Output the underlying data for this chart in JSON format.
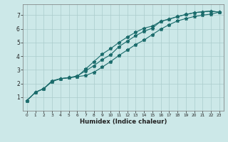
{
  "xlabel": "Humidex (Indice chaleur)",
  "background_color": "#cce8e8",
  "grid_color": "#aacccc",
  "line_color": "#1a6b6b",
  "xlim": [
    -0.5,
    23.5
  ],
  "ylim": [
    0,
    7.8
  ],
  "x_ticks": [
    0,
    1,
    2,
    3,
    4,
    5,
    6,
    7,
    8,
    9,
    10,
    11,
    12,
    13,
    14,
    15,
    16,
    17,
    18,
    19,
    20,
    21,
    22,
    23
  ],
  "y_ticks": [
    1,
    2,
    3,
    4,
    5,
    6,
    7
  ],
  "line1_x": [
    0,
    1,
    2,
    3,
    4,
    5,
    6,
    7,
    8,
    9,
    10,
    11,
    12,
    13,
    14,
    15,
    16,
    17,
    18,
    19,
    20,
    21,
    22,
    23
  ],
  "line1_y": [
    0.75,
    1.35,
    1.62,
    2.15,
    2.35,
    2.42,
    2.5,
    3.05,
    3.6,
    4.15,
    4.55,
    5.0,
    5.4,
    5.75,
    6.05,
    6.2,
    6.55,
    6.7,
    6.9,
    7.05,
    7.18,
    7.25,
    7.3,
    7.22
  ],
  "line2_x": [
    0,
    1,
    2,
    3,
    4,
    5,
    6,
    7,
    8,
    9,
    10,
    11,
    12,
    13,
    14,
    15,
    16,
    17,
    18,
    19,
    20,
    21,
    22,
    23
  ],
  "line2_y": [
    0.75,
    1.35,
    1.62,
    2.2,
    2.35,
    2.42,
    2.55,
    2.92,
    3.3,
    3.75,
    4.1,
    4.7,
    5.1,
    5.5,
    5.82,
    6.05,
    6.55,
    6.72,
    6.9,
    7.05,
    7.18,
    7.25,
    7.3,
    7.22
  ],
  "line3_x": [
    0,
    1,
    2,
    3,
    4,
    5,
    6,
    7,
    8,
    9,
    10,
    11,
    12,
    13,
    14,
    15,
    16,
    17,
    18,
    19,
    20,
    21,
    22,
    23
  ],
  "line3_y": [
    0.75,
    1.35,
    1.62,
    2.15,
    2.35,
    2.42,
    2.5,
    2.58,
    2.82,
    3.2,
    3.6,
    4.05,
    4.45,
    4.85,
    5.18,
    5.58,
    5.98,
    6.3,
    6.58,
    6.75,
    6.9,
    7.0,
    7.08,
    7.22
  ]
}
